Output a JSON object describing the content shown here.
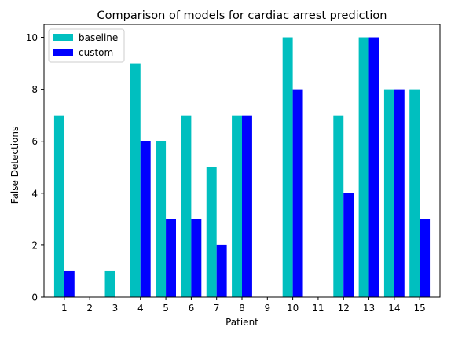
{
  "chart_data": {
    "type": "bar",
    "title": "Comparison of models for cardiac arrest prediction",
    "xlabel": "Patient",
    "ylabel": "False Detections",
    "categories": [
      "1",
      "2",
      "3",
      "4",
      "5",
      "6",
      "7",
      "8",
      "9",
      "10",
      "11",
      "12",
      "13",
      "14",
      "15"
    ],
    "series": [
      {
        "name": "baseline",
        "color": "#00bfbf",
        "values": [
          7,
          0,
          1,
          9,
          6,
          7,
          5,
          7,
          0,
          10,
          0,
          7,
          10,
          8,
          8
        ]
      },
      {
        "name": "custom",
        "color": "#0000ff",
        "values": [
          1,
          0,
          0,
          6,
          3,
          3,
          2,
          7,
          0,
          8,
          0,
          4,
          10,
          8,
          3
        ]
      }
    ],
    "ylim": [
      0,
      10.5
    ],
    "yticks": [
      0,
      2,
      4,
      6,
      8,
      10
    ],
    "grid": false,
    "legend_position": "top-left"
  }
}
